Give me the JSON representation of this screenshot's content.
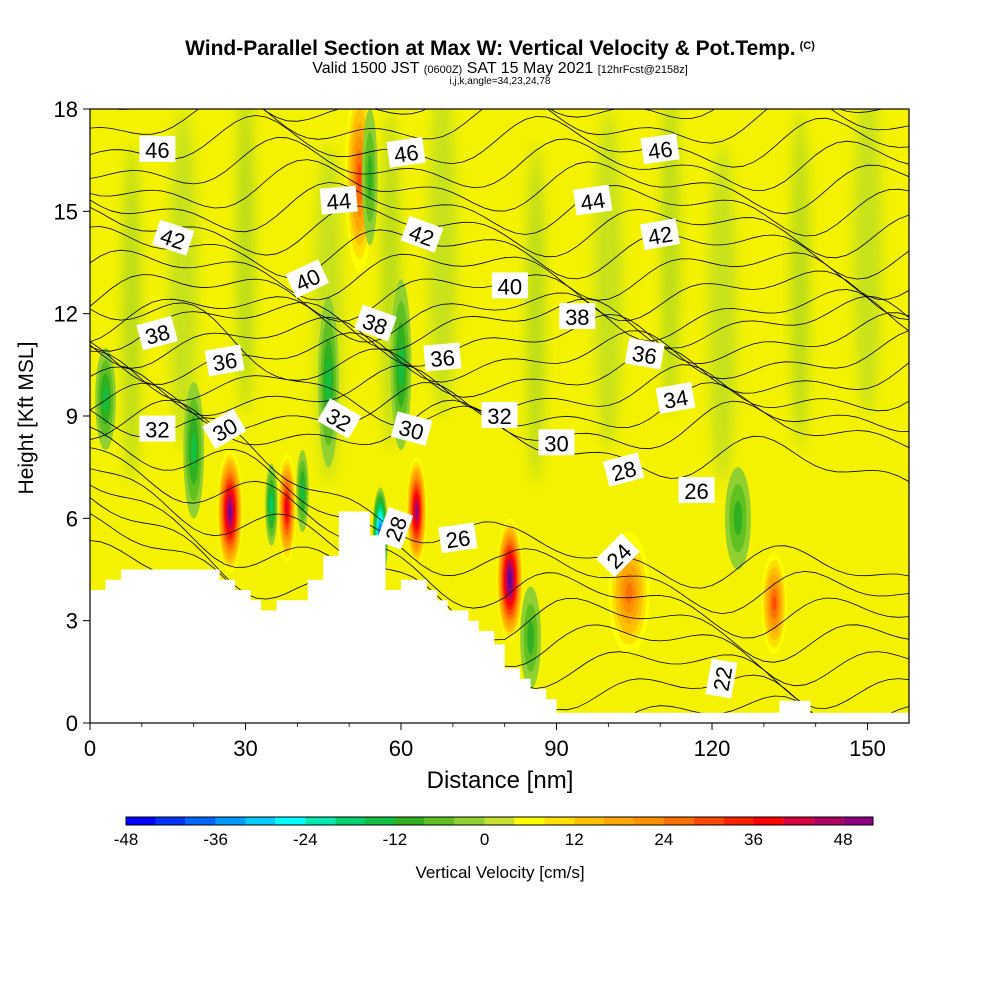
{
  "title": {
    "main": "Wind-Parallel Section at Max W: Vertical Velocity & Pot.Temp.",
    "copyright": "(C)",
    "valid_prefix": "Valid 1500 JST",
    "valid_utc": "(0600Z)",
    "valid_date": "SAT 15 May 2021",
    "forecast": "[12hrFcst@2158z]",
    "indices": "i,j,k,angle=34,23,24,78"
  },
  "chart_data": {
    "type": "heatmap",
    "subtype": "vertical cross-section (filled contours of vertical velocity with potential temperature line contours)",
    "xlabel": "Distance [nm]",
    "ylabel": "Height [Kft MSL]",
    "xlim": [
      0,
      158
    ],
    "ylim": [
      0,
      18
    ],
    "x_ticks": [
      0,
      30,
      60,
      90,
      120,
      150
    ],
    "y_ticks": [
      0,
      3,
      6,
      9,
      12,
      15,
      18
    ],
    "colorbar": {
      "label": "Vertical Velocity [cm/s]",
      "ticks": [
        -48,
        -36,
        -24,
        -12,
        0,
        12,
        24,
        36,
        48
      ],
      "levels": [
        -48,
        -44,
        -40,
        -36,
        -32,
        -28,
        -24,
        -20,
        -16,
        -12,
        -8,
        -4,
        0,
        4,
        8,
        12,
        16,
        20,
        24,
        28,
        32,
        36,
        40,
        44,
        48,
        52
      ],
      "colors": [
        "#0000ff",
        "#0033ff",
        "#0066ff",
        "#0099ff",
        "#00ccff",
        "#00ffff",
        "#00e8b0",
        "#00d070",
        "#10c040",
        "#30b020",
        "#60c020",
        "#90d030",
        "#c8e030",
        "#ffff00",
        "#ffe000",
        "#ffc000",
        "#ffa800",
        "#ff9000",
        "#ff7000",
        "#ff4800",
        "#ff2000",
        "#ff0000",
        "#d8003c",
        "#b00064",
        "#8c0080",
        "#6c008c"
      ]
    },
    "terrain": [
      [
        0,
        3.9
      ],
      [
        3,
        3.9
      ],
      [
        3,
        4.2
      ],
      [
        6,
        4.2
      ],
      [
        6,
        4.5
      ],
      [
        25,
        4.5
      ],
      [
        25,
        4.2
      ],
      [
        28,
        4.2
      ],
      [
        28,
        3.9
      ],
      [
        31,
        3.9
      ],
      [
        31,
        3.6
      ],
      [
        33,
        3.6
      ],
      [
        33,
        3.3
      ],
      [
        36,
        3.3
      ],
      [
        36,
        3.6
      ],
      [
        42,
        3.6
      ],
      [
        42,
        4.2
      ],
      [
        45,
        4.2
      ],
      [
        45,
        4.9
      ],
      [
        48,
        4.9
      ],
      [
        48,
        6.2
      ],
      [
        51,
        6.2
      ],
      [
        51,
        6.2
      ],
      [
        54,
        6.2
      ],
      [
        54,
        5.5
      ],
      [
        57,
        5.5
      ],
      [
        57,
        3.9
      ],
      [
        60,
        3.9
      ],
      [
        60,
        4.2
      ],
      [
        65,
        4.2
      ],
      [
        65,
        3.9
      ],
      [
        67,
        3.9
      ],
      [
        67,
        3.6
      ],
      [
        69,
        3.6
      ],
      [
        69,
        3.3
      ],
      [
        73,
        3.3
      ],
      [
        73,
        3.0
      ],
      [
        75,
        3.0
      ],
      [
        75,
        2.7
      ],
      [
        78,
        2.7
      ],
      [
        78,
        2.3
      ],
      [
        80,
        2.3
      ],
      [
        80,
        1.6
      ],
      [
        83,
        1.6
      ],
      [
        83,
        1.3
      ],
      [
        85,
        1.3
      ],
      [
        85,
        1.0
      ],
      [
        88,
        1.0
      ],
      [
        88,
        0.7
      ],
      [
        90,
        0.7
      ],
      [
        90,
        0.3
      ],
      [
        133,
        0.3
      ],
      [
        133,
        0.65
      ],
      [
        139,
        0.65
      ],
      [
        139,
        0.3
      ],
      [
        158,
        0.3
      ]
    ],
    "velocity_features": [
      {
        "x": 27,
        "y": 6.2,
        "w": 48,
        "rx": 2.5,
        "ry": 1.8
      },
      {
        "x": 38,
        "y": 6.3,
        "w": 34,
        "rx": 1.8,
        "ry": 1.6
      },
      {
        "x": 63,
        "y": 6.2,
        "w": 44,
        "rx": 2.0,
        "ry": 1.6
      },
      {
        "x": 81,
        "y": 4.2,
        "w": 50,
        "rx": 2.6,
        "ry": 1.8
      },
      {
        "x": 104,
        "y": 3.8,
        "w": 18,
        "rx": 4.0,
        "ry": 1.8
      },
      {
        "x": 132,
        "y": 3.5,
        "w": 22,
        "rx": 2.5,
        "ry": 1.5
      },
      {
        "x": 52,
        "y": 16.0,
        "w": 22,
        "rx": 2.8,
        "ry": 2.8
      },
      {
        "x": 56,
        "y": 5.5,
        "w": -38,
        "rx": 1.5,
        "ry": 1.4
      },
      {
        "x": 35,
        "y": 6.4,
        "w": -14,
        "rx": 1.2,
        "ry": 1.2
      },
      {
        "x": 41,
        "y": 6.8,
        "w": -12,
        "rx": 1.2,
        "ry": 1.2
      },
      {
        "x": 20,
        "y": 8.0,
        "w": -10,
        "rx": 2.0,
        "ry": 2.0
      },
      {
        "x": 3,
        "y": 9.5,
        "w": -10,
        "rx": 2.0,
        "ry": 1.5
      },
      {
        "x": 46,
        "y": 10.0,
        "w": -12,
        "rx": 2.0,
        "ry": 2.5
      },
      {
        "x": 60,
        "y": 10.5,
        "w": -10,
        "rx": 2.0,
        "ry": 2.5
      },
      {
        "x": 54,
        "y": 16.0,
        "w": -8,
        "rx": 1.5,
        "ry": 2.0
      },
      {
        "x": 125,
        "y": 6.0,
        "w": -8,
        "rx": 2.5,
        "ry": 1.5
      },
      {
        "x": 85,
        "y": 2.5,
        "w": -8,
        "rx": 2.0,
        "ry": 1.5
      }
    ],
    "theta_contours": {
      "levels": [
        22,
        23,
        24,
        25,
        26,
        27,
        28,
        29,
        30,
        31,
        32,
        33,
        34,
        35,
        36,
        37,
        38,
        39,
        40,
        41,
        42,
        43,
        44,
        45,
        46,
        47,
        48
      ],
      "labels": [
        {
          "text": "46",
          "x": 13,
          "y": 16.8,
          "angle": 0
        },
        {
          "text": "46",
          "x": 61,
          "y": 16.7,
          "angle": -8
        },
        {
          "text": "46",
          "x": 110,
          "y": 16.8,
          "angle": -8
        },
        {
          "text": "44",
          "x": 48,
          "y": 15.3,
          "angle": -5
        },
        {
          "text": "44",
          "x": 97,
          "y": 15.3,
          "angle": -8
        },
        {
          "text": "42",
          "x": 16,
          "y": 14.2,
          "angle": 18
        },
        {
          "text": "42",
          "x": 64,
          "y": 14.3,
          "angle": 20
        },
        {
          "text": "42",
          "x": 110,
          "y": 14.3,
          "angle": -10
        },
        {
          "text": "40",
          "x": 42,
          "y": 13.0,
          "angle": -25
        },
        {
          "text": "40",
          "x": 81,
          "y": 12.8,
          "angle": 0
        },
        {
          "text": "38",
          "x": 13,
          "y": 11.4,
          "angle": -15
        },
        {
          "text": "38",
          "x": 55,
          "y": 11.7,
          "angle": 20
        },
        {
          "text": "38",
          "x": 94,
          "y": 11.9,
          "angle": 0
        },
        {
          "text": "36",
          "x": 26,
          "y": 10.6,
          "angle": -10
        },
        {
          "text": "36",
          "x": 68,
          "y": 10.7,
          "angle": -5
        },
        {
          "text": "36",
          "x": 107,
          "y": 10.8,
          "angle": 10
        },
        {
          "text": "34",
          "x": 113,
          "y": 9.5,
          "angle": -10
        },
        {
          "text": "32",
          "x": 13,
          "y": 8.6,
          "angle": 0
        },
        {
          "text": "32",
          "x": 48,
          "y": 8.9,
          "angle": 30
        },
        {
          "text": "32",
          "x": 79,
          "y": 9.0,
          "angle": 0
        },
        {
          "text": "30",
          "x": 26,
          "y": 8.6,
          "angle": -30
        },
        {
          "text": "30",
          "x": 62,
          "y": 8.6,
          "angle": 15
        },
        {
          "text": "30",
          "x": 90,
          "y": 8.2,
          "angle": 0
        },
        {
          "text": "28",
          "x": 103,
          "y": 7.4,
          "angle": -15
        },
        {
          "text": "28",
          "x": 59,
          "y": 5.7,
          "angle": -70
        },
        {
          "text": "26",
          "x": 117,
          "y": 6.8,
          "angle": 0
        },
        {
          "text": "26",
          "x": 71,
          "y": 5.4,
          "angle": -8
        },
        {
          "text": "24",
          "x": 102,
          "y": 4.9,
          "angle": -45
        },
        {
          "text": "22",
          "x": 122,
          "y": 1.3,
          "angle": -80
        }
      ]
    }
  }
}
